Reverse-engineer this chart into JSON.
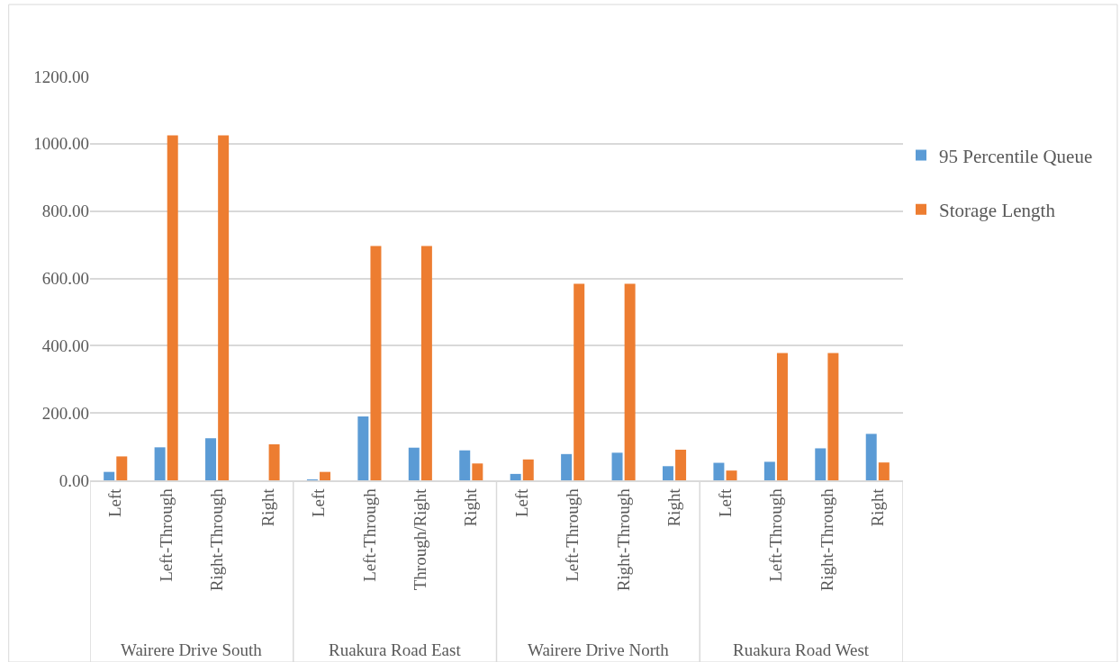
{
  "chart_data": {
    "type": "bar",
    "categories": [
      "Left",
      "Left-Through",
      "Right-Through",
      "Right",
      "Left",
      "Left-Through",
      "Through/Right",
      "Right",
      "Left",
      "Left-Through",
      "Right-Through",
      "Right",
      "Left",
      "Left-Through",
      "Right-Through",
      "Right"
    ],
    "series": [
      {
        "name": "95 Percentile Queue",
        "color": "#5b9bd5",
        "values": [
          25,
          98,
          125,
          0,
          2,
          190,
          97,
          89,
          19,
          78,
          82,
          42,
          52,
          55,
          95,
          138
        ]
      },
      {
        "name": "Storage Length",
        "color": "#ed7d31",
        "values": [
          71,
          1025,
          1025,
          107,
          25,
          696,
          696,
          50,
          62,
          584,
          584,
          91,
          29,
          378,
          378,
          53
        ]
      }
    ],
    "annotations": [
      "Wairere Drive South",
      "Ruakura Road East",
      "Wairere Drive North",
      "Ruakura Road West"
    ],
    "ylim": [
      0,
      1200
    ],
    "yticks": [
      {
        "value": 0,
        "label": "0.00"
      },
      {
        "value": 200,
        "label": "200.00"
      },
      {
        "value": 400,
        "label": "400.00"
      },
      {
        "value": 600,
        "label": "600.00"
      },
      {
        "value": 800,
        "label": "800.00"
      },
      {
        "value": 1000,
        "label": "1000.00"
      },
      {
        "value": 1200,
        "label": "1200.00"
      }
    ],
    "grid": "y",
    "legend": "top right"
  }
}
